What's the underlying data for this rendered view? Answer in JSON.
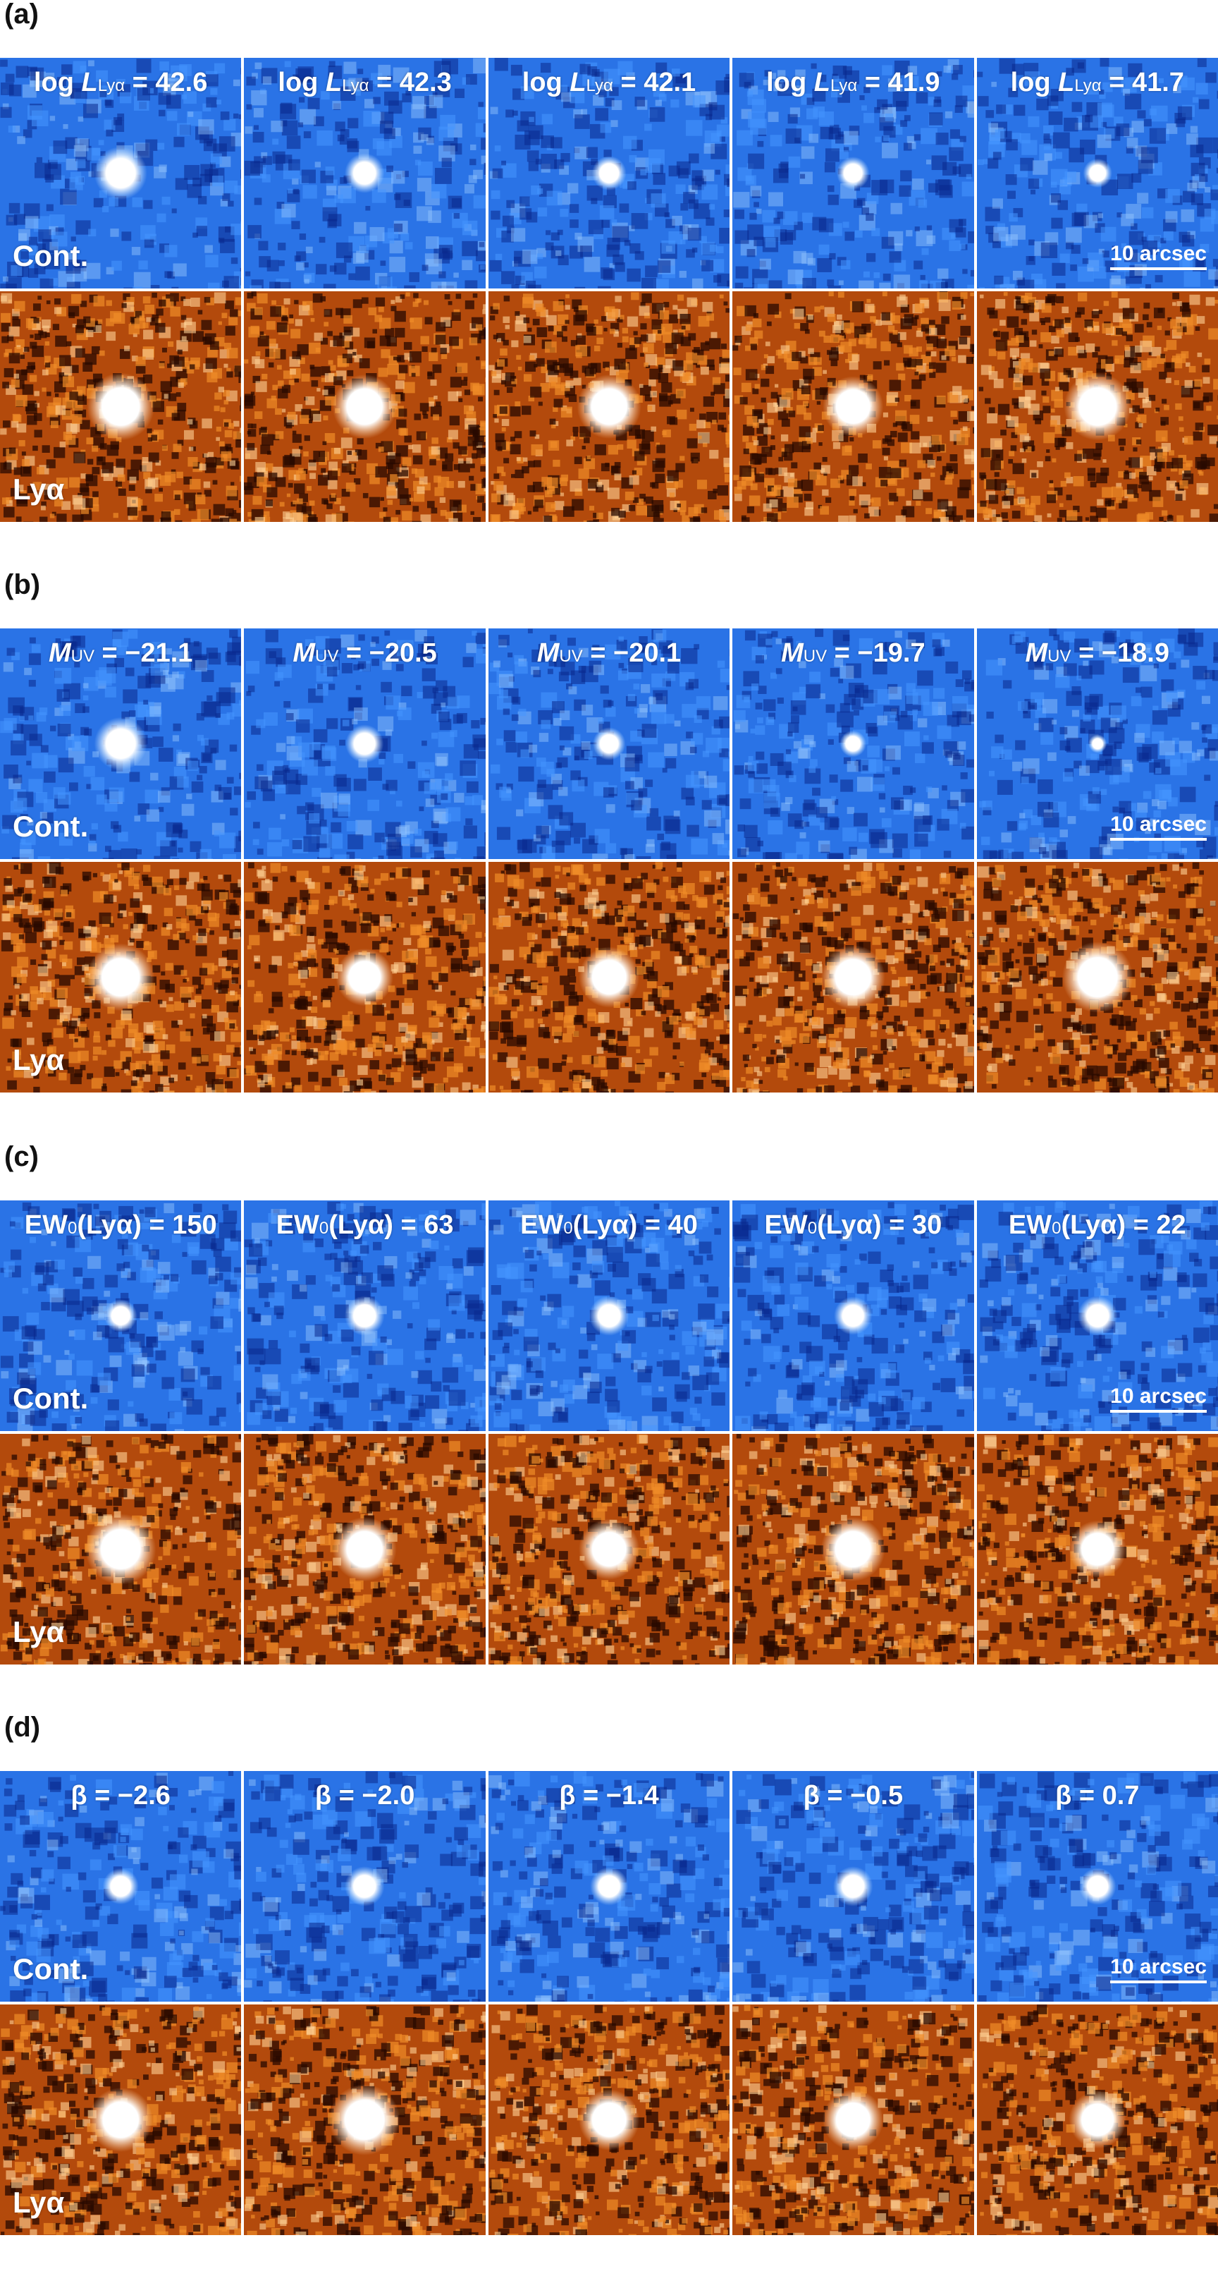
{
  "panels": [
    {
      "label": "(a)",
      "titles": [
        {
          "prefix": "log ",
          "var": "L",
          "sub": "Lyα",
          "eq": " = 42.6"
        },
        {
          "prefix": "log ",
          "var": "L",
          "sub": "Lyα",
          "eq": " = 42.3"
        },
        {
          "prefix": "log ",
          "var": "L",
          "sub": "Lyα",
          "eq": " = 42.1"
        },
        {
          "prefix": "log ",
          "var": "L",
          "sub": "Lyα",
          "eq": " = 41.9"
        },
        {
          "prefix": "log ",
          "var": "L",
          "sub": "Lyα",
          "eq": " = 41.7"
        }
      ],
      "cont_sizes": [
        1.0,
        0.75,
        0.65,
        0.62,
        0.55
      ],
      "lya_sizes": [
        1.0,
        0.95,
        0.95,
        0.9,
        1.0
      ]
    },
    {
      "label": "(b)",
      "titles": [
        {
          "prefix": "",
          "var": "M",
          "sub": "UV",
          "eq": " = −21.1"
        },
        {
          "prefix": "",
          "var": "M",
          "sub": "UV",
          "eq": " = −20.5"
        },
        {
          "prefix": "",
          "var": "M",
          "sub": "UV",
          "eq": " = −20.1"
        },
        {
          "prefix": "",
          "var": "M",
          "sub": "UV",
          "eq": " = −19.7"
        },
        {
          "prefix": "",
          "var": "M",
          "sub": "UV",
          "eq": " = −18.9"
        }
      ],
      "cont_sizes": [
        1.0,
        0.72,
        0.62,
        0.5,
        0.35
      ],
      "lya_sizes": [
        1.0,
        0.85,
        0.9,
        0.95,
        1.05
      ]
    },
    {
      "label": "(c)",
      "titles": [
        {
          "prefix": "EW",
          "var": "",
          "sub": "0",
          "eq": "(Lyα) = 150"
        },
        {
          "prefix": "EW",
          "var": "",
          "sub": "0",
          "eq": "(Lyα) = 63"
        },
        {
          "prefix": "EW",
          "var": "",
          "sub": "0",
          "eq": "(Lyα) = 40"
        },
        {
          "prefix": "EW",
          "var": "",
          "sub": "0",
          "eq": "(Lyα) = 30"
        },
        {
          "prefix": "EW",
          "var": "",
          "sub": "0",
          "eq": "(Lyα) = 22"
        }
      ],
      "cont_sizes": [
        0.62,
        0.75,
        0.75,
        0.72,
        0.75
      ],
      "lya_sizes": [
        1.05,
        0.95,
        0.9,
        0.95,
        0.85
      ]
    },
    {
      "label": "(d)",
      "titles": [
        {
          "prefix": "β = −2.6",
          "var": "",
          "sub": "",
          "eq": ""
        },
        {
          "prefix": "β = −2.0",
          "var": "",
          "sub": "",
          "eq": ""
        },
        {
          "prefix": "β = −1.4",
          "var": "",
          "sub": "",
          "eq": ""
        },
        {
          "prefix": "β = −0.5",
          "var": "",
          "sub": "",
          "eq": ""
        },
        {
          "prefix": "β = 0.7",
          "var": "",
          "sub": "",
          "eq": ""
        }
      ],
      "cont_sizes": [
        0.68,
        0.75,
        0.72,
        0.75,
        0.7
      ],
      "lya_sizes": [
        0.95,
        1.05,
        0.9,
        0.9,
        0.85
      ]
    }
  ],
  "row_labels": {
    "cont": "Cont.",
    "lya": "Lyα"
  },
  "scalebar": "10 arcsec",
  "colors": {
    "cont_bg": "#2a73e6",
    "lya_bg": "#b34a0c"
  }
}
